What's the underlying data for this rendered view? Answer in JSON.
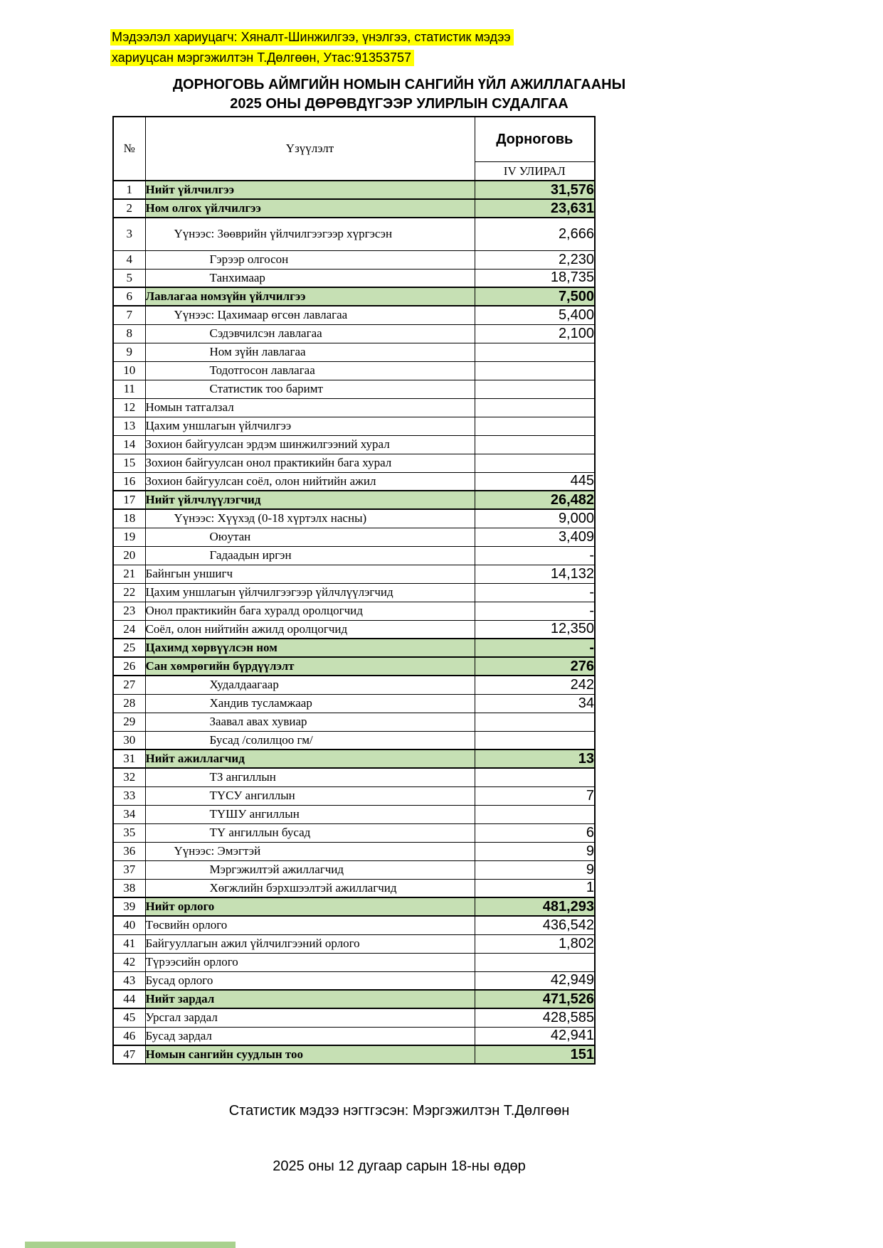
{
  "note": {
    "line1": "Мэдээлэл хариуцагч: Хяналт-Шинжилгээ, үнэлгээ, статистик мэдээ",
    "line2": "хариуцсан мэргэжилтэн Т.Дөлгөөн, Утас:91353757"
  },
  "title": {
    "line1": "ДОРНОГОВЬ АЙМГИЙН НОМЫН САНГИЙН ҮЙЛ АЖИЛЛАГААНЫ",
    "line2": "2025 ОНЫ ДӨРӨВДҮГЭЭР УЛИРЛЫН СУДАЛГАА"
  },
  "table": {
    "col_no": "№",
    "col_indicator": "Үзүүлэлт",
    "col_region": "Дорноговь",
    "col_quarter": "IV УЛИРАЛ",
    "rows": [
      {
        "no": 1,
        "label": "Нийт үйлчилгээ",
        "value": "31,576",
        "highlight": true,
        "indent": 0,
        "tall": false
      },
      {
        "no": 2,
        "label": "Ном олгох үйлчилгээ",
        "value": "23,631",
        "highlight": true,
        "indent": 0,
        "tall": false
      },
      {
        "no": 3,
        "label": "Үүнээс: Зөөврийн үйлчилгээгээр хүргэсэн",
        "value": "2,666",
        "highlight": false,
        "indent": 1,
        "tall": true
      },
      {
        "no": 4,
        "label": "Гэрээр олгосон",
        "value": "2,230",
        "highlight": false,
        "indent": 2,
        "tall": false
      },
      {
        "no": 5,
        "label": "Танхимаар",
        "value": "18,735",
        "highlight": false,
        "indent": 2,
        "tall": false
      },
      {
        "no": 6,
        "label": "Лавлагаа номзүйн үйлчилгээ",
        "value": "7,500",
        "highlight": true,
        "indent": 0,
        "tall": false
      },
      {
        "no": 7,
        "label": "Үүнээс: Цахимаар өгсөн лавлагаа",
        "value": "5,400",
        "highlight": false,
        "indent": 1,
        "tall": false
      },
      {
        "no": 8,
        "label": "Сэдэвчилсэн лавлагаа",
        "value": "2,100",
        "highlight": false,
        "indent": 2,
        "tall": false
      },
      {
        "no": 9,
        "label": "Ном зүйн лавлагаа",
        "value": "",
        "highlight": false,
        "indent": 2,
        "tall": false
      },
      {
        "no": 10,
        "label": "Тодотгосон лавлагаа",
        "value": "",
        "highlight": false,
        "indent": 2,
        "tall": false
      },
      {
        "no": 11,
        "label": "Статистик тоо баримт",
        "value": "",
        "highlight": false,
        "indent": 2,
        "tall": false
      },
      {
        "no": 12,
        "label": "Номын татгалзал",
        "value": "",
        "highlight": false,
        "indent": 0,
        "tall": false
      },
      {
        "no": 13,
        "label": "Цахим уншлагын үйлчилгээ",
        "value": "",
        "highlight": false,
        "indent": 0,
        "tall": false
      },
      {
        "no": 14,
        "label": "Зохион байгуулсан эрдэм шинжилгээний хурал",
        "value": "",
        "highlight": false,
        "indent": 0,
        "tall": false
      },
      {
        "no": 15,
        "label": "Зохион байгуулсан онол практикийн бага хурал",
        "value": "",
        "highlight": false,
        "indent": 0,
        "tall": false
      },
      {
        "no": 16,
        "label": "Зохион байгуулсан соёл, олон нийтийн ажил",
        "value": "445",
        "highlight": false,
        "indent": 0,
        "tall": false
      },
      {
        "no": 17,
        "label": "Нийт үйлчлүүлэгчид",
        "value": "26,482",
        "highlight": true,
        "indent": 0,
        "tall": false
      },
      {
        "no": 18,
        "label": "Үүнээс: Хүүхэд (0-18 хүртэлх насны)",
        "value": "9,000",
        "highlight": false,
        "indent": 1,
        "tall": false
      },
      {
        "no": 19,
        "label": "Оюутан",
        "value": "3,409",
        "highlight": false,
        "indent": 2,
        "tall": false
      },
      {
        "no": 20,
        "label": "Гадаадын иргэн",
        "value": "-",
        "highlight": false,
        "indent": 2,
        "tall": false
      },
      {
        "no": 21,
        "label": "Байнгын уншигч",
        "value": "14,132",
        "highlight": false,
        "indent": 0,
        "tall": false
      },
      {
        "no": 22,
        "label": "Цахим уншлагын үйлчилгээгээр үйлчлүүлэгчид",
        "value": "-",
        "highlight": false,
        "indent": 0,
        "tall": false
      },
      {
        "no": 23,
        "label": "Онол практикийн бага хуралд оролцогчид",
        "value": "-",
        "highlight": false,
        "indent": 0,
        "tall": false
      },
      {
        "no": 24,
        "label": "Соёл, олон нийтийн ажилд оролцогчид",
        "value": "12,350",
        "highlight": false,
        "indent": 0,
        "tall": false
      },
      {
        "no": 25,
        "label": "Цахимд хөрвүүлсэн ном",
        "value": "-",
        "highlight": true,
        "indent": 0,
        "tall": false
      },
      {
        "no": 26,
        "label": "Сан хөмрөгийн бүрдүүлэлт",
        "value": "276",
        "highlight": true,
        "indent": 0,
        "tall": false
      },
      {
        "no": 27,
        "label": "Худалдаагаар",
        "value": "242",
        "highlight": false,
        "indent": 2,
        "tall": false
      },
      {
        "no": 28,
        "label": "Хандив тусламжаар",
        "value": "34",
        "highlight": false,
        "indent": 2,
        "tall": false
      },
      {
        "no": 29,
        "label": "Заавал авах хувиар",
        "value": "",
        "highlight": false,
        "indent": 2,
        "tall": false
      },
      {
        "no": 30,
        "label": "Бусад /солилцоо гм/",
        "value": "",
        "highlight": false,
        "indent": 2,
        "tall": false
      },
      {
        "no": 31,
        "label": "Нийт ажиллагчид",
        "value": "13",
        "highlight": true,
        "indent": 0,
        "tall": false
      },
      {
        "no": 32,
        "label": "ТЗ ангиллын",
        "value": "",
        "highlight": false,
        "indent": 2,
        "tall": false
      },
      {
        "no": 33,
        "label": "ТҮСУ ангиллын",
        "value": "7",
        "highlight": false,
        "indent": 2,
        "tall": false
      },
      {
        "no": 34,
        "label": "ТҮШУ ангиллын",
        "value": "",
        "highlight": false,
        "indent": 2,
        "tall": false
      },
      {
        "no": 35,
        "label": "ТҮ ангиллын бусад",
        "value": "6",
        "highlight": false,
        "indent": 2,
        "tall": false
      },
      {
        "no": 36,
        "label": "Үүнээс: Эмэгтэй",
        "value": "9",
        "highlight": false,
        "indent": 1,
        "tall": false
      },
      {
        "no": 37,
        "label": "Мэргэжилтэй ажиллагчид",
        "value": "9",
        "highlight": false,
        "indent": 2,
        "tall": false
      },
      {
        "no": 38,
        "label": "Хөгжлийн бэрхшээлтэй ажиллагчид",
        "value": "1",
        "highlight": false,
        "indent": 2,
        "tall": false
      },
      {
        "no": 39,
        "label": "Нийт орлого",
        "value": "481,293",
        "highlight": true,
        "indent": 0,
        "tall": false
      },
      {
        "no": 40,
        "label": "Төсвийн орлого",
        "value": "436,542",
        "highlight": false,
        "indent": 0,
        "tall": false
      },
      {
        "no": 41,
        "label": "Байгууллагын ажил үйлчилгээний орлого",
        "value": "1,802",
        "highlight": false,
        "indent": 0,
        "tall": false
      },
      {
        "no": 42,
        "label": "Түрээсийн орлого",
        "value": "",
        "highlight": false,
        "indent": 0,
        "tall": false
      },
      {
        "no": 43,
        "label": "Бусад орлого",
        "value": "42,949",
        "highlight": false,
        "indent": 0,
        "tall": false
      },
      {
        "no": 44,
        "label": "Нийт зардал",
        "value": "471,526",
        "highlight": true,
        "indent": 0,
        "tall": false
      },
      {
        "no": 45,
        "label": "Урсгал зардал",
        "value": "428,585",
        "highlight": false,
        "indent": 0,
        "tall": false
      },
      {
        "no": 46,
        "label": "Бусад зардал",
        "value": "42,941",
        "highlight": false,
        "indent": 0,
        "tall": false
      },
      {
        "no": 47,
        "label": "Номын сангийн суудлын тоо",
        "value": "151",
        "highlight": true,
        "indent": 0,
        "tall": false
      }
    ]
  },
  "footer": {
    "compiled_by": "Статистик мэдээ нэгтгэсэн: Мэргэжилтэн Т.Дөлгөөн",
    "date": "2025 оны 12 дугаар сарын 18-ны өдөр"
  },
  "colors": {
    "highlight_yellow": "#ffff00",
    "highlight_green": "#c6e0b4",
    "strip_green": "#a9d18e"
  }
}
